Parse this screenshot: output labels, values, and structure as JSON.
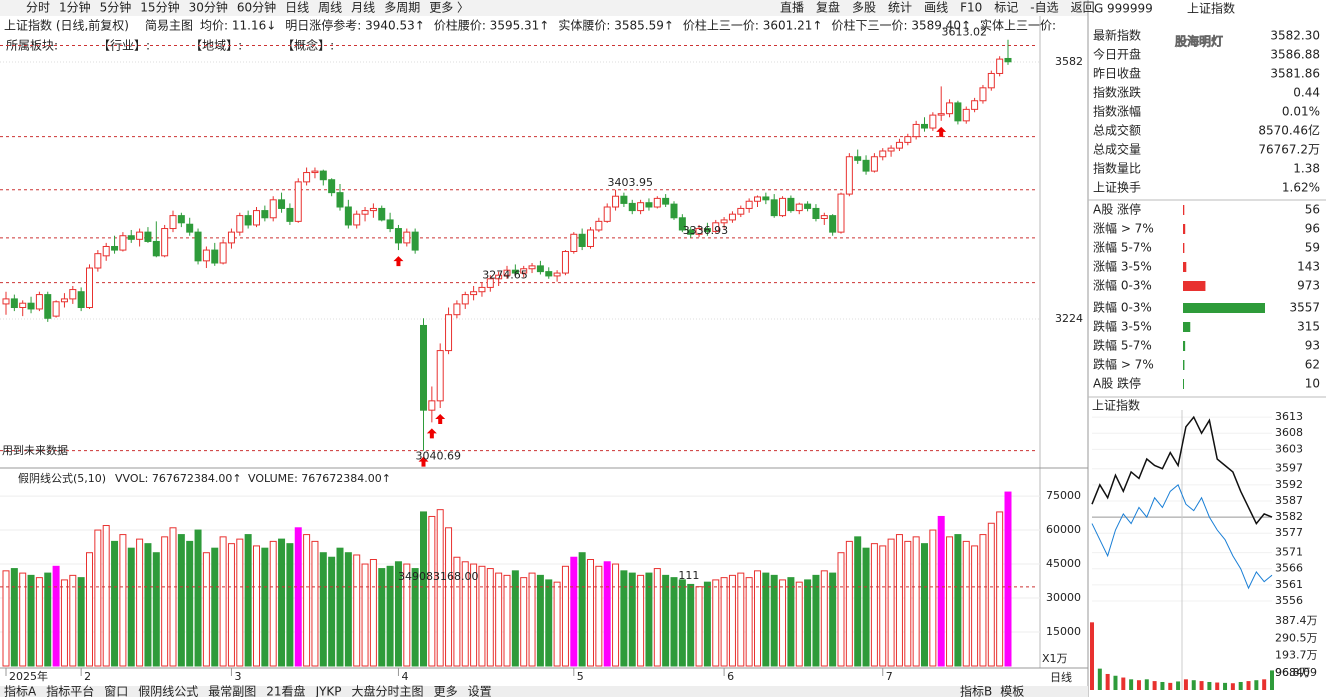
{
  "toolbar": {
    "tabs": [
      "分时",
      "1分钟",
      "5分钟",
      "15分钟",
      "30分钟",
      "60分钟",
      "日线",
      "周线",
      "月线",
      "多周期",
      "更多 〉"
    ],
    "active": 6,
    "right": [
      "直播",
      "复盘",
      "多股",
      "统计",
      "画线",
      "F10",
      "标记",
      "-自选",
      "返回"
    ]
  },
  "info_bar": {
    "title": "上证指数 (日线,前复权)",
    "mode": "简易主图",
    "items": [
      "均价: 11.16↓",
      "明日涨停参考: 3940.53↑",
      "价柱腰价: 3595.31↑",
      "实体腰价: 3585.59↑",
      "价柱上三一价: 3601.21↑",
      "价柱下三一价: 3589.40↑",
      "实体上三一价:"
    ]
  },
  "sector_row": [
    "所属板块:",
    "【行业】:",
    "【地域】:",
    "【概念】:"
  ],
  "price_chart": {
    "ylim": [
      3027.6,
      3615.4
    ],
    "yticks": [
      3582,
      3224
    ],
    "up_color": "#e8312f",
    "down_color": "#2e9b3a",
    "ref_lines": [
      3605,
      3478,
      3403.95,
      3336.93,
      3274.65,
      3040.69
    ],
    "labels": [
      {
        "value": 3613.02,
        "index": 113
      },
      {
        "value": 3403.95,
        "index": 73
      },
      {
        "value": 3274.65,
        "index": 58
      },
      {
        "value": 3336.93,
        "index": 82
      },
      {
        "value": 3040.69,
        "index": 50
      }
    ],
    "arrows": [
      47,
      50,
      51,
      52,
      112
    ],
    "note": "用到未来数据",
    "month_labels": [
      {
        "label": "2025年",
        "index": 0
      },
      {
        "label": "2",
        "index": 9
      },
      {
        "label": "3",
        "index": 27
      },
      {
        "label": "4",
        "index": 47
      },
      {
        "label": "5",
        "index": 68
      },
      {
        "label": "6",
        "index": 86
      },
      {
        "label": "7",
        "index": 105
      }
    ],
    "candles": [
      [
        3245,
        3262,
        3230,
        3252
      ],
      [
        3252,
        3258,
        3235,
        3240
      ],
      [
        3240,
        3250,
        3228,
        3246
      ],
      [
        3246,
        3255,
        3232,
        3238
      ],
      [
        3238,
        3262,
        3235,
        3258
      ],
      [
        3258,
        3262,
        3220,
        3225
      ],
      [
        3228,
        3250,
        3226,
        3248
      ],
      [
        3248,
        3260,
        3240,
        3252
      ],
      [
        3252,
        3270,
        3245,
        3265
      ],
      [
        3262,
        3268,
        3235,
        3240
      ],
      [
        3240,
        3300,
        3238,
        3295
      ],
      [
        3295,
        3320,
        3290,
        3315
      ],
      [
        3312,
        3330,
        3305,
        3325
      ],
      [
        3325,
        3340,
        3315,
        3320
      ],
      [
        3320,
        3345,
        3318,
        3340
      ],
      [
        3340,
        3348,
        3330,
        3335
      ],
      [
        3335,
        3350,
        3325,
        3345
      ],
      [
        3345,
        3352,
        3330,
        3332
      ],
      [
        3332,
        3360,
        3310,
        3312
      ],
      [
        3312,
        3355,
        3310,
        3350
      ],
      [
        3350,
        3375,
        3345,
        3368
      ],
      [
        3368,
        3372,
        3352,
        3358
      ],
      [
        3356,
        3365,
        3340,
        3345
      ],
      [
        3345,
        3350,
        3300,
        3305
      ],
      [
        3305,
        3325,
        3295,
        3320
      ],
      [
        3320,
        3330,
        3298,
        3302
      ],
      [
        3302,
        3335,
        3300,
        3330
      ],
      [
        3330,
        3350,
        3322,
        3345
      ],
      [
        3345,
        3372,
        3340,
        3368
      ],
      [
        3368,
        3375,
        3350,
        3355
      ],
      [
        3355,
        3380,
        3352,
        3375
      ],
      [
        3375,
        3382,
        3360,
        3365
      ],
      [
        3365,
        3395,
        3360,
        3390
      ],
      [
        3390,
        3400,
        3372,
        3378
      ],
      [
        3378,
        3385,
        3355,
        3360
      ],
      [
        3360,
        3420,
        3358,
        3415
      ],
      [
        3415,
        3435,
        3410,
        3428
      ],
      [
        3428,
        3435,
        3420,
        3430
      ],
      [
        3430,
        3432,
        3410,
        3418
      ],
      [
        3418,
        3420,
        3395,
        3400
      ],
      [
        3400,
        3412,
        3375,
        3380
      ],
      [
        3380,
        3390,
        3350,
        3355
      ],
      [
        3355,
        3375,
        3350,
        3370
      ],
      [
        3370,
        3380,
        3360,
        3375
      ],
      [
        3375,
        3385,
        3365,
        3378
      ],
      [
        3378,
        3382,
        3360,
        3362
      ],
      [
        3362,
        3372,
        3345,
        3350
      ],
      [
        3350,
        3355,
        3320,
        3330
      ],
      [
        3330,
        3350,
        3325,
        3345
      ],
      [
        3345,
        3350,
        3315,
        3320
      ],
      [
        3215,
        3225,
        3040.69,
        3097
      ],
      [
        3097,
        3130,
        3080,
        3110
      ],
      [
        3110,
        3190,
        3100,
        3180
      ],
      [
        3180,
        3240,
        3175,
        3230
      ],
      [
        3230,
        3250,
        3225,
        3245
      ],
      [
        3245,
        3262,
        3238,
        3258
      ],
      [
        3258,
        3270,
        3250,
        3262
      ],
      [
        3262,
        3275,
        3255,
        3268
      ],
      [
        3268,
        3285,
        3262,
        3280
      ],
      [
        3280,
        3290,
        3270,
        3285
      ],
      [
        3285,
        3298,
        3280,
        3292
      ],
      [
        3292,
        3300,
        3284,
        3288
      ],
      [
        3288,
        3298,
        3282,
        3294
      ],
      [
        3294,
        3302,
        3288,
        3298
      ],
      [
        3298,
        3305,
        3286,
        3290
      ],
      [
        3290,
        3296,
        3280,
        3284
      ],
      [
        3284,
        3292,
        3276,
        3288
      ],
      [
        3288,
        3320,
        3285,
        3318
      ],
      [
        3318,
        3345,
        3315,
        3342
      ],
      [
        3342,
        3350,
        3320,
        3325
      ],
      [
        3325,
        3352,
        3322,
        3348
      ],
      [
        3348,
        3365,
        3345,
        3360
      ],
      [
        3360,
        3385,
        3358,
        3380
      ],
      [
        3380,
        3403.95,
        3375,
        3395
      ],
      [
        3395,
        3400,
        3380,
        3385
      ],
      [
        3385,
        3390,
        3370,
        3375
      ],
      [
        3375,
        3390,
        3370,
        3386
      ],
      [
        3386,
        3392,
        3375,
        3380
      ],
      [
        3380,
        3395,
        3378,
        3392
      ],
      [
        3392,
        3398,
        3380,
        3384
      ],
      [
        3384,
        3388,
        3362,
        3365
      ],
      [
        3365,
        3370,
        3345,
        3348
      ],
      [
        3348,
        3352,
        3336.93,
        3342
      ],
      [
        3342,
        3355,
        3338,
        3350
      ],
      [
        3350,
        3358,
        3340,
        3346
      ],
      [
        3346,
        3362,
        3344,
        3358
      ],
      [
        3358,
        3366,
        3350,
        3362
      ],
      [
        3362,
        3374,
        3358,
        3370
      ],
      [
        3370,
        3382,
        3366,
        3378
      ],
      [
        3378,
        3392,
        3372,
        3388
      ],
      [
        3388,
        3396,
        3380,
        3394
      ],
      [
        3394,
        3400,
        3384,
        3390
      ],
      [
        3390,
        3398,
        3365,
        3368
      ],
      [
        3368,
        3395,
        3366,
        3392
      ],
      [
        3392,
        3396,
        3372,
        3375
      ],
      [
        3375,
        3386,
        3370,
        3384
      ],
      [
        3384,
        3388,
        3374,
        3378
      ],
      [
        3378,
        3384,
        3360,
        3364
      ],
      [
        3364,
        3372,
        3355,
        3368
      ],
      [
        3368,
        3370,
        3340,
        3345
      ],
      [
        3345,
        3400,
        3343,
        3398
      ],
      [
        3398,
        3455,
        3395,
        3450
      ],
      [
        3450,
        3460,
        3440,
        3445
      ],
      [
        3445,
        3452,
        3425,
        3430
      ],
      [
        3430,
        3455,
        3428,
        3450
      ],
      [
        3450,
        3462,
        3445,
        3458
      ],
      [
        3458,
        3466,
        3450,
        3462
      ],
      [
        3462,
        3475,
        3458,
        3470
      ],
      [
        3470,
        3482,
        3466,
        3478
      ],
      [
        3478,
        3500,
        3474,
        3495
      ],
      [
        3495,
        3505,
        3485,
        3490
      ],
      [
        3490,
        3512,
        3486,
        3508
      ],
      [
        3508,
        3548,
        3500,
        3510
      ],
      [
        3510,
        3530,
        3505,
        3525
      ],
      [
        3525,
        3528,
        3495,
        3500
      ],
      [
        3500,
        3520,
        3496,
        3516
      ],
      [
        3516,
        3532,
        3512,
        3528
      ],
      [
        3528,
        3550,
        3524,
        3546
      ],
      [
        3546,
        3570,
        3542,
        3566
      ],
      [
        3566,
        3590,
        3562,
        3586
      ],
      [
        3586.88,
        3613.02,
        3578,
        3582.3
      ]
    ]
  },
  "volume_chart": {
    "title": "假阴线公式(5,10)",
    "vvol": "VVOL: 767672384.00↑",
    "volume": "VOLUME: 767672384.00↑",
    "unit": "X1万",
    "ylim": [
      0,
      79000
    ],
    "yticks": [
      75000,
      60000,
      45000,
      30000,
      15000
    ],
    "magenta": [
      6,
      35,
      68,
      72,
      112,
      120
    ],
    "highlight_color": "#ff00ff",
    "ref_line": {
      "value": 34908.3168,
      "label": "349083168.00"
    },
    "mark_text": "111",
    "mark_index": 81,
    "values": [
      42000,
      43000,
      41000,
      40000,
      39000,
      41000,
      44000,
      38000,
      40000,
      39000,
      50000,
      60000,
      62000,
      55000,
      58000,
      52000,
      56000,
      54000,
      50000,
      57000,
      61000,
      58000,
      55000,
      60000,
      50000,
      52000,
      57000,
      54000,
      56000,
      58000,
      53000,
      52000,
      55000,
      56000,
      54000,
      61000,
      58000,
      55000,
      50000,
      48000,
      52000,
      50000,
      49000,
      45000,
      47000,
      43000,
      44000,
      46000,
      45000,
      43000,
      68000,
      66000,
      69000,
      61000,
      48000,
      46000,
      45000,
      44000,
      43000,
      41000,
      40000,
      42000,
      39000,
      41000,
      40000,
      38000,
      37000,
      44000,
      48000,
      50000,
      47000,
      44000,
      46000,
      45000,
      42000,
      41000,
      40000,
      41000,
      43000,
      40000,
      39000,
      38000,
      36000,
      35000,
      37000,
      38000,
      39000,
      40000,
      41000,
      39000,
      42000,
      41000,
      40000,
      38000,
      39000,
      37000,
      38000,
      40000,
      42000,
      41000,
      50000,
      55000,
      57000,
      52000,
      54000,
      53000,
      56000,
      58000,
      55000,
      57000,
      54000,
      60000,
      66000,
      57000,
      58000,
      55000,
      53000,
      58000,
      63000,
      68000,
      76767
    ]
  },
  "bottom_tabs": [
    "指标A",
    "指标平台",
    "窗口",
    "假阴线公式",
    "最常副图",
    "21看盘",
    "JYKP",
    "大盘分时主图",
    "更多",
    "设置"
  ],
  "bottom_right": [
    "指标B",
    "模板"
  ],
  "period_label": "日线",
  "quote": {
    "flag": "G",
    "code": "999999",
    "name": "上证指数",
    "watermark": "股海明灯",
    "rows": [
      {
        "label": "最新指数",
        "value": "3582.30",
        "color": "#e8312f"
      },
      {
        "label": "今日开盘",
        "value": "3586.88",
        "color": "#e8312f"
      },
      {
        "label": "昨日收盘",
        "value": "3581.86",
        "color": "#222"
      },
      {
        "label": "指数涨跌",
        "value": "0.44",
        "color": "#e8312f"
      },
      {
        "label": "指数涨幅",
        "value": "0.01%",
        "color": "#e8312f"
      },
      {
        "label": "总成交额",
        "value": "8570.46亿",
        "color": "#222"
      },
      {
        "label": "总成交量",
        "value": "76767.2万",
        "color": "#222"
      },
      {
        "label": "指数量比",
        "value": "1.38",
        "color": "#e8312f"
      },
      {
        "label": "上证换手",
        "value": "1.62%",
        "color": "#222"
      }
    ],
    "dist": [
      {
        "label": "A股 涨停",
        "count": 56,
        "color": "#e8312f"
      },
      {
        "label": "涨幅 > 7%",
        "count": 96,
        "color": "#e8312f"
      },
      {
        "label": "涨幅 5-7%",
        "count": 59,
        "color": "#e8312f"
      },
      {
        "label": "涨幅 3-5%",
        "count": 143,
        "color": "#e8312f"
      },
      {
        "label": "涨幅 0-3%",
        "count": 973,
        "color": "#e8312f"
      },
      {
        "label": "跌幅 0-3%",
        "count": 3557,
        "color": "#2e9b3a"
      },
      {
        "label": "跌幅 3-5%",
        "count": 315,
        "color": "#2e9b3a"
      },
      {
        "label": "跌幅 5-7%",
        "count": 93,
        "color": "#2e9b3a"
      },
      {
        "label": "跌幅 > 7%",
        "count": 62,
        "color": "#2e9b3a"
      },
      {
        "label": "A股 跌停",
        "count": 10,
        "color": "#2e9b3a"
      }
    ]
  },
  "intraday": {
    "title": "上证指数",
    "ylim": [
      3554.45,
      3615.2
    ],
    "yticks": [
      3613,
      3608,
      3603,
      3597,
      3592,
      3587,
      3582,
      3577,
      3571,
      3566,
      3561,
      3556
    ],
    "base": 3582,
    "price": [
      3586,
      3592,
      3588,
      3595,
      3590,
      3596,
      3594,
      3600,
      3598,
      3597,
      3602,
      3598,
      3610,
      3613,
      3608,
      3612,
      3600,
      3598,
      3596,
      3590,
      3585,
      3580,
      3583,
      3582
    ],
    "avg": [
      3580,
      3575,
      3570,
      3578,
      3583,
      3580,
      3585,
      3582,
      3588,
      3585,
      3590,
      3592,
      3586,
      3584,
      3588,
      3582,
      3578,
      3575,
      3570,
      3566,
      3560,
      3565,
      3562,
      3564
    ],
    "vol_ylim": [
      0,
      438
    ],
    "vol_ticks": [
      {
        "value": 387.4,
        "label": "387.4万"
      },
      {
        "value": 290.5,
        "label": "290.5万"
      },
      {
        "value": 193.7,
        "label": "193.7万"
      },
      {
        "value": 96.8,
        "label": "96.8万"
      },
      {
        "value": 96.8409,
        "label": "968409"
      }
    ],
    "volume": [
      380,
      120,
      90,
      80,
      70,
      60,
      55,
      60,
      50,
      45,
      40,
      48,
      60,
      55,
      50,
      45,
      42,
      40,
      38,
      45,
      50,
      55,
      60,
      110
    ]
  }
}
